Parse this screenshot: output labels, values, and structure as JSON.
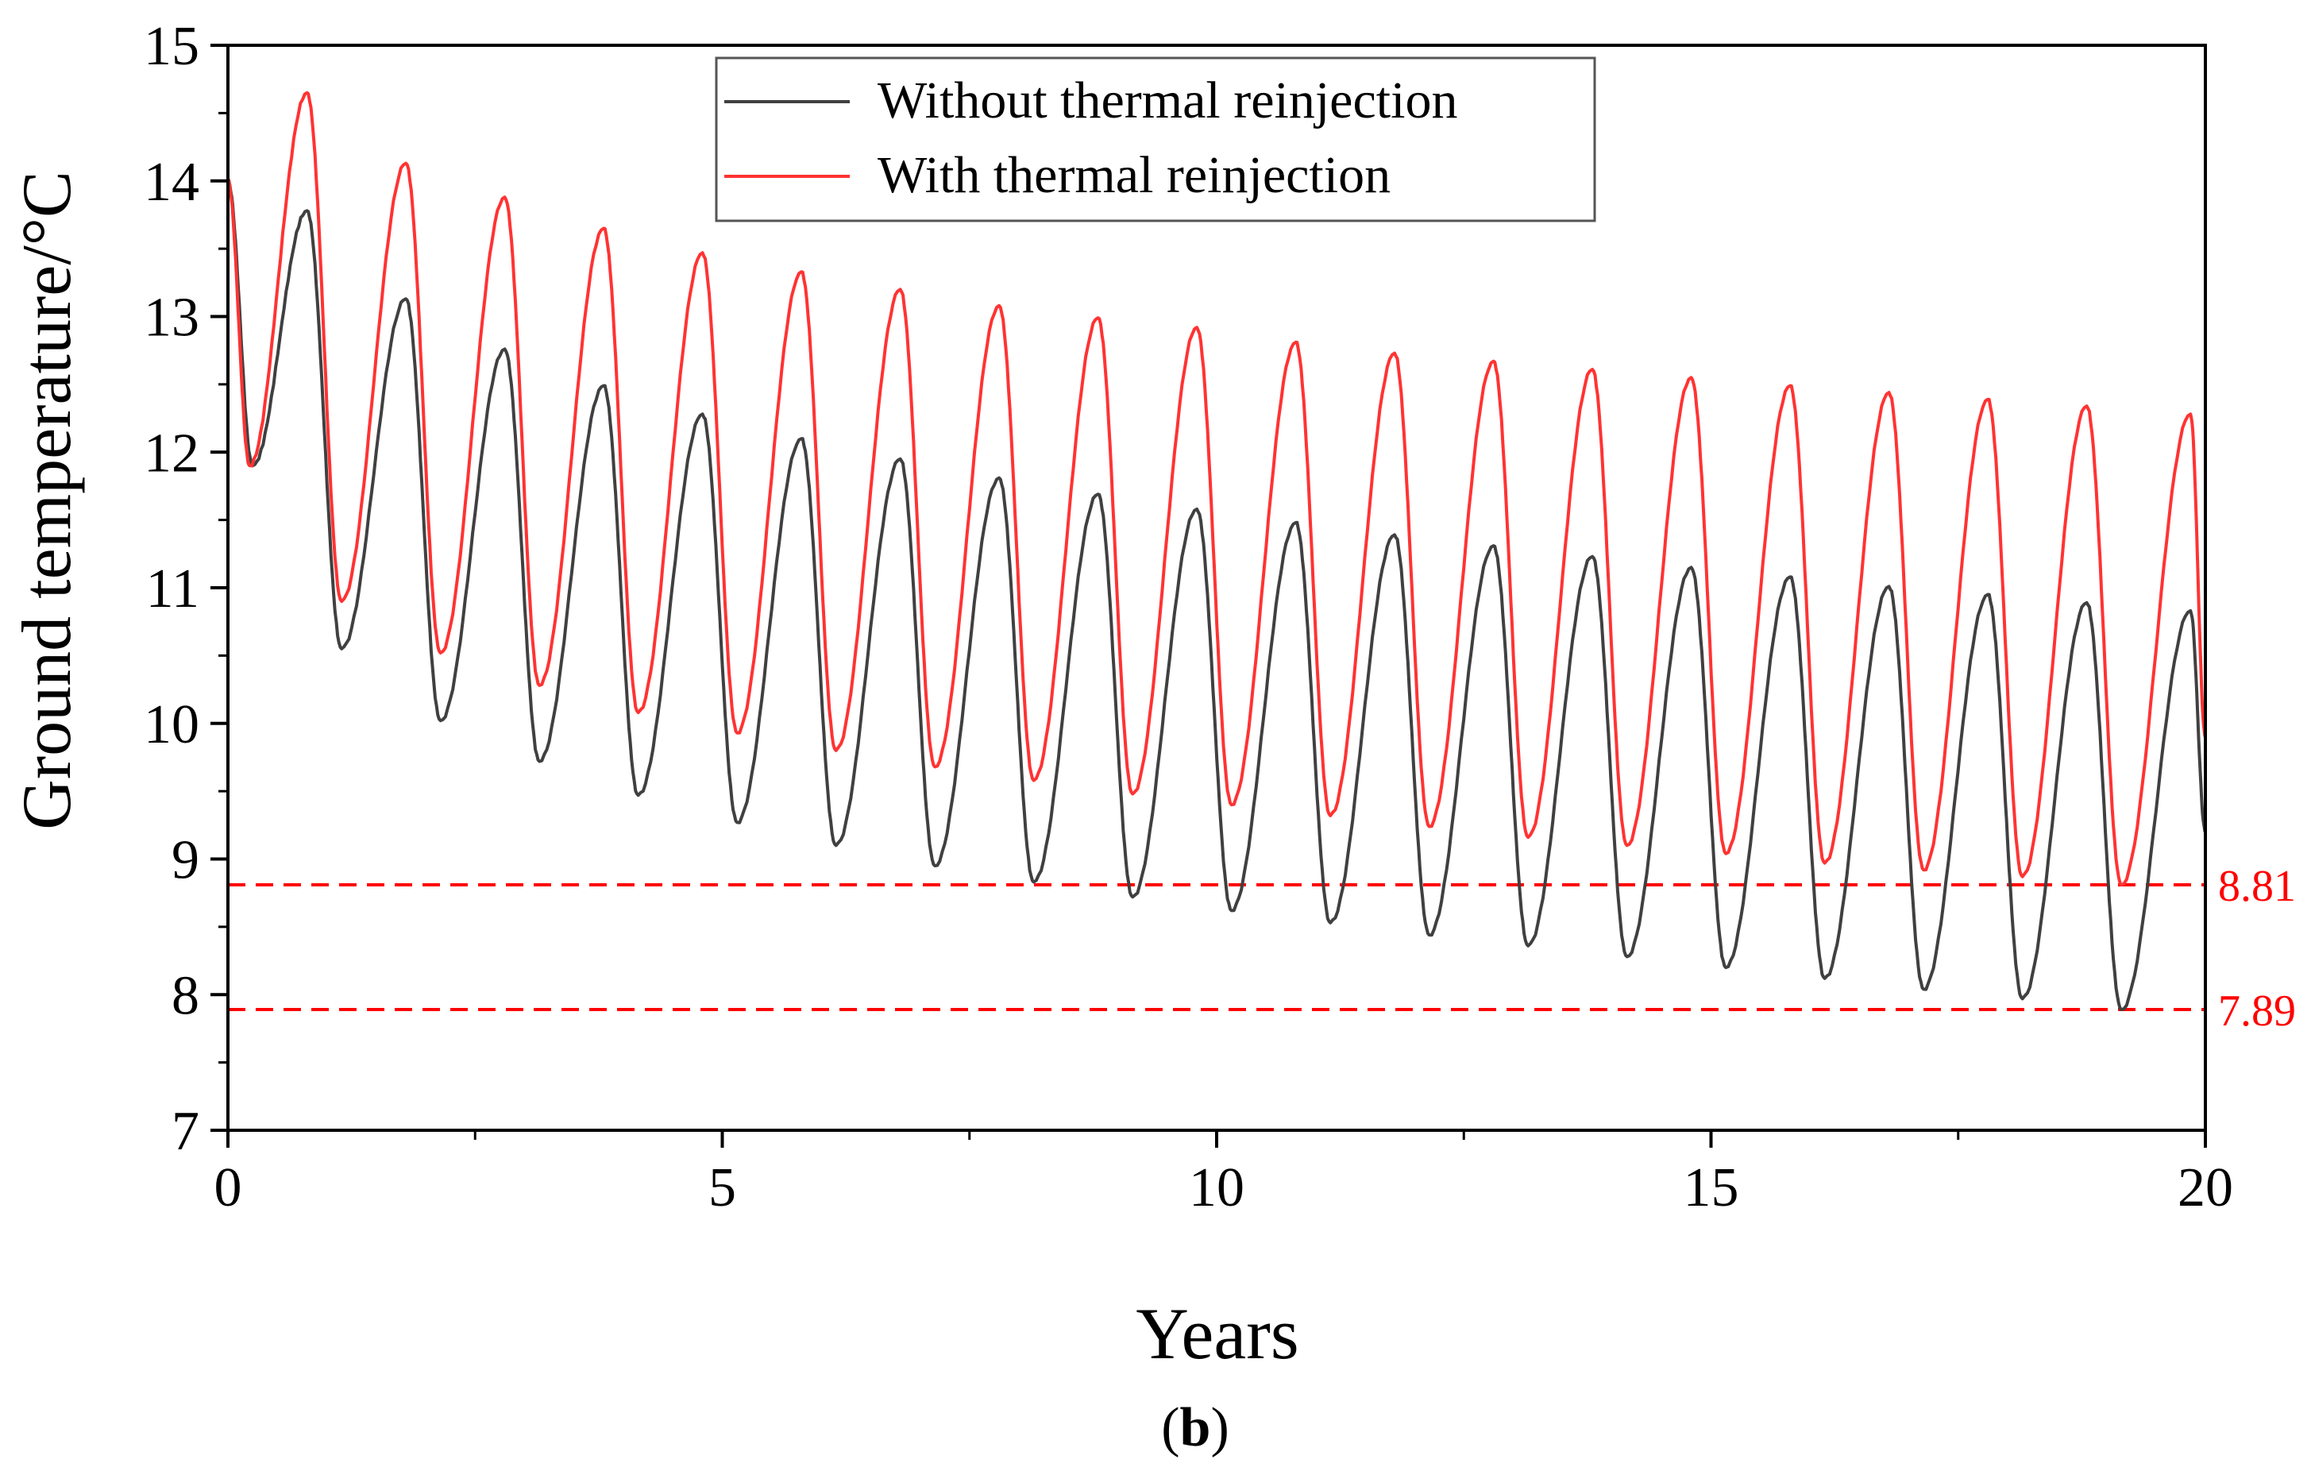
{
  "chart_data": {
    "type": "line",
    "title": "",
    "xlabel": "Years",
    "ylabel": "Ground temperature/°C",
    "xlim": [
      0,
      20
    ],
    "ylim": [
      7,
      15
    ],
    "xticks": [
      0,
      5,
      10,
      15,
      20
    ],
    "yticks": [
      7,
      8,
      9,
      10,
      11,
      12,
      13,
      14,
      15
    ],
    "grid": false,
    "legend_position": "top-center",
    "panel_label": "b",
    "series": [
      {
        "name": "Without thermal reinjection",
        "color": "#404040",
        "start": 14.0,
        "end": 9.2,
        "annual_cycles": [
          {
            "min_x": 0.25,
            "min": 11.9,
            "max_x": 0.8,
            "max": 13.78
          },
          {
            "min_x": 1.15,
            "min": 10.55,
            "max_x": 1.8,
            "max": 13.13
          },
          {
            "min_x": 2.15,
            "min": 10.02,
            "max_x": 2.8,
            "max": 12.76
          },
          {
            "min_x": 3.15,
            "min": 9.72,
            "max_x": 3.8,
            "max": 12.49
          },
          {
            "min_x": 4.15,
            "min": 9.47,
            "max_x": 4.8,
            "max": 12.28
          },
          {
            "min_x": 5.15,
            "min": 9.27,
            "max_x": 5.8,
            "max": 12.1
          },
          {
            "min_x": 6.15,
            "min": 9.1,
            "max_x": 6.8,
            "max": 11.95
          },
          {
            "min_x": 7.15,
            "min": 8.95,
            "max_x": 7.8,
            "max": 11.81
          },
          {
            "min_x": 8.15,
            "min": 8.83,
            "max_x": 8.8,
            "max": 11.69
          },
          {
            "min_x": 9.15,
            "min": 8.72,
            "max_x": 9.8,
            "max": 11.58
          },
          {
            "min_x": 10.15,
            "min": 8.62,
            "max_x": 10.8,
            "max": 11.48
          },
          {
            "min_x": 11.15,
            "min": 8.53,
            "max_x": 11.8,
            "max": 11.39
          },
          {
            "min_x": 12.15,
            "min": 8.44,
            "max_x": 12.8,
            "max": 11.31
          },
          {
            "min_x": 13.15,
            "min": 8.36,
            "max_x": 13.8,
            "max": 11.23
          },
          {
            "min_x": 14.15,
            "min": 8.28,
            "max_x": 14.8,
            "max": 11.15
          },
          {
            "min_x": 15.15,
            "min": 8.2,
            "max_x": 15.8,
            "max": 11.08
          },
          {
            "min_x": 16.15,
            "min": 8.12,
            "max_x": 16.8,
            "max": 11.01
          },
          {
            "min_x": 17.15,
            "min": 8.04,
            "max_x": 17.8,
            "max": 10.95
          },
          {
            "min_x": 18.15,
            "min": 7.97,
            "max_x": 18.8,
            "max": 10.89
          },
          {
            "min_x": 19.15,
            "min": 7.89,
            "max_x": 19.85,
            "max": 10.83
          }
        ]
      },
      {
        "name": "With thermal reinjection",
        "color": "#ff3333",
        "start": 14.0,
        "end": 9.9,
        "annual_cycles": [
          {
            "min_x": 0.22,
            "min": 11.9,
            "max_x": 0.8,
            "max": 14.65
          },
          {
            "min_x": 1.15,
            "min": 10.9,
            "max_x": 1.8,
            "max": 14.13
          },
          {
            "min_x": 2.15,
            "min": 10.52,
            "max_x": 2.8,
            "max": 13.88
          },
          {
            "min_x": 3.15,
            "min": 10.28,
            "max_x": 3.8,
            "max": 13.65
          },
          {
            "min_x": 4.15,
            "min": 10.08,
            "max_x": 4.8,
            "max": 13.47
          },
          {
            "min_x": 5.15,
            "min": 9.93,
            "max_x": 5.8,
            "max": 13.33
          },
          {
            "min_x": 6.15,
            "min": 9.8,
            "max_x": 6.8,
            "max": 13.2
          },
          {
            "min_x": 7.15,
            "min": 9.68,
            "max_x": 7.8,
            "max": 13.08
          },
          {
            "min_x": 8.15,
            "min": 9.58,
            "max_x": 8.8,
            "max": 12.99
          },
          {
            "min_x": 9.15,
            "min": 9.48,
            "max_x": 9.8,
            "max": 12.92
          },
          {
            "min_x": 10.15,
            "min": 9.4,
            "max_x": 10.8,
            "max": 12.81
          },
          {
            "min_x": 11.15,
            "min": 9.32,
            "max_x": 11.8,
            "max": 12.73
          },
          {
            "min_x": 12.15,
            "min": 9.24,
            "max_x": 12.8,
            "max": 12.67
          },
          {
            "min_x": 13.15,
            "min": 9.16,
            "max_x": 13.8,
            "max": 12.61
          },
          {
            "min_x": 14.15,
            "min": 9.1,
            "max_x": 14.8,
            "max": 12.55
          },
          {
            "min_x": 15.15,
            "min": 9.04,
            "max_x": 15.8,
            "max": 12.49
          },
          {
            "min_x": 16.15,
            "min": 8.97,
            "max_x": 16.8,
            "max": 12.44
          },
          {
            "min_x": 17.15,
            "min": 8.92,
            "max_x": 17.8,
            "max": 12.39
          },
          {
            "min_x": 18.15,
            "min": 8.87,
            "max_x": 18.8,
            "max": 12.34
          },
          {
            "min_x": 19.15,
            "min": 8.81,
            "max_x": 19.85,
            "max": 12.28
          }
        ]
      }
    ],
    "reference_lines": [
      {
        "y": 8.81,
        "label": "8.81",
        "color": "#ff0000",
        "style": "dashed"
      },
      {
        "y": 7.89,
        "label": "7.89",
        "color": "#ff0000",
        "style": "dashed"
      }
    ]
  }
}
